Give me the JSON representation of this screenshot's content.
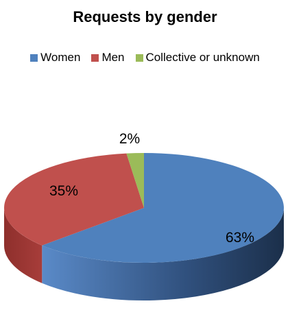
{
  "chart_data": {
    "type": "pie",
    "title": "Requests by gender",
    "legend_position": "top",
    "slices": [
      {
        "name": "Women",
        "value": 63,
        "label": "63%",
        "color": "#4f81bd",
        "dark": "#1f3b5f"
      },
      {
        "name": "Men",
        "value": 35,
        "label": "35%",
        "color": "#c0504d",
        "dark": "#7a2220"
      },
      {
        "name": "Collective or unknown",
        "value": 2,
        "label": "2%",
        "color": "#9bbb59",
        "dark": "#5c7a2a"
      }
    ]
  }
}
